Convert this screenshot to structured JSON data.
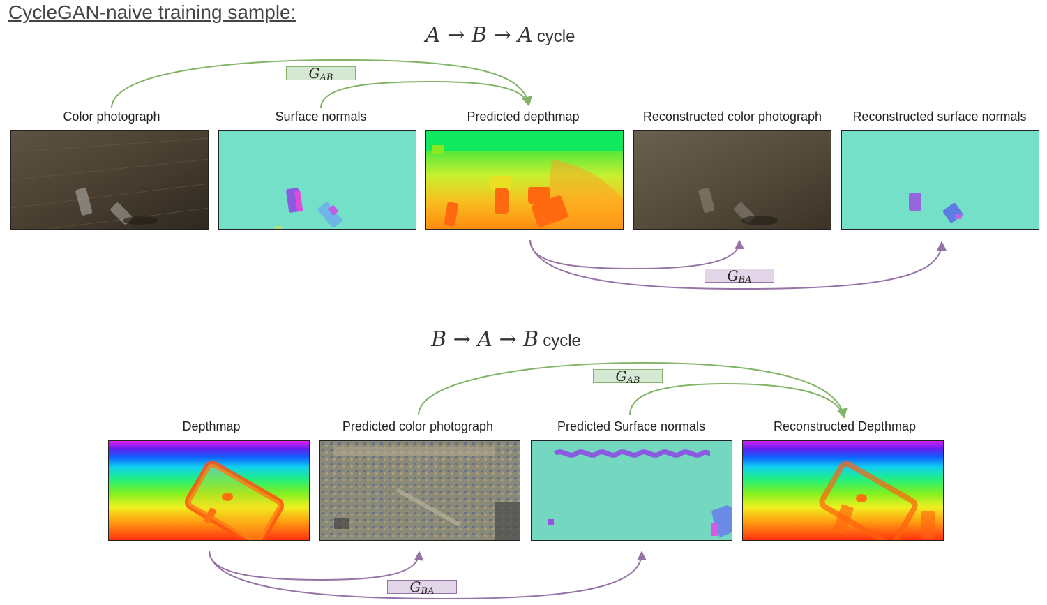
{
  "page_title": "CycleGAN-naive training sample:",
  "cycle_top": {
    "formula": "A → B → A",
    "word": "cycle"
  },
  "cycle_bottom": {
    "formula": "B → A → B",
    "word": "cycle"
  },
  "top_row": [
    {
      "label": "Color photograph",
      "kind": "photo"
    },
    {
      "label": "Surface normals",
      "kind": "normals"
    },
    {
      "label": "Predicted depthmap",
      "kind": "depth-predicted"
    },
    {
      "label": "Reconstructed color photograph",
      "kind": "photo-reconstructed"
    },
    {
      "label": "Reconstructed surface normals",
      "kind": "normals-reconstructed"
    }
  ],
  "bottom_row": [
    {
      "label": "Depthmap",
      "kind": "depth-rainbow"
    },
    {
      "label": "Predicted color photograph",
      "kind": "photo-predicted"
    },
    {
      "label": "Predicted Surface normals",
      "kind": "normals-predicted"
    },
    {
      "label": "Reconstructed Depthmap",
      "kind": "depth-reconstructed"
    }
  ],
  "generators": {
    "gab": {
      "symbol": "G",
      "subscript": "AB"
    },
    "gba": {
      "symbol": "G",
      "subscript": "BA"
    }
  },
  "colors": {
    "green_arrow": "#82b366",
    "purple_arrow": "#9673a6"
  }
}
